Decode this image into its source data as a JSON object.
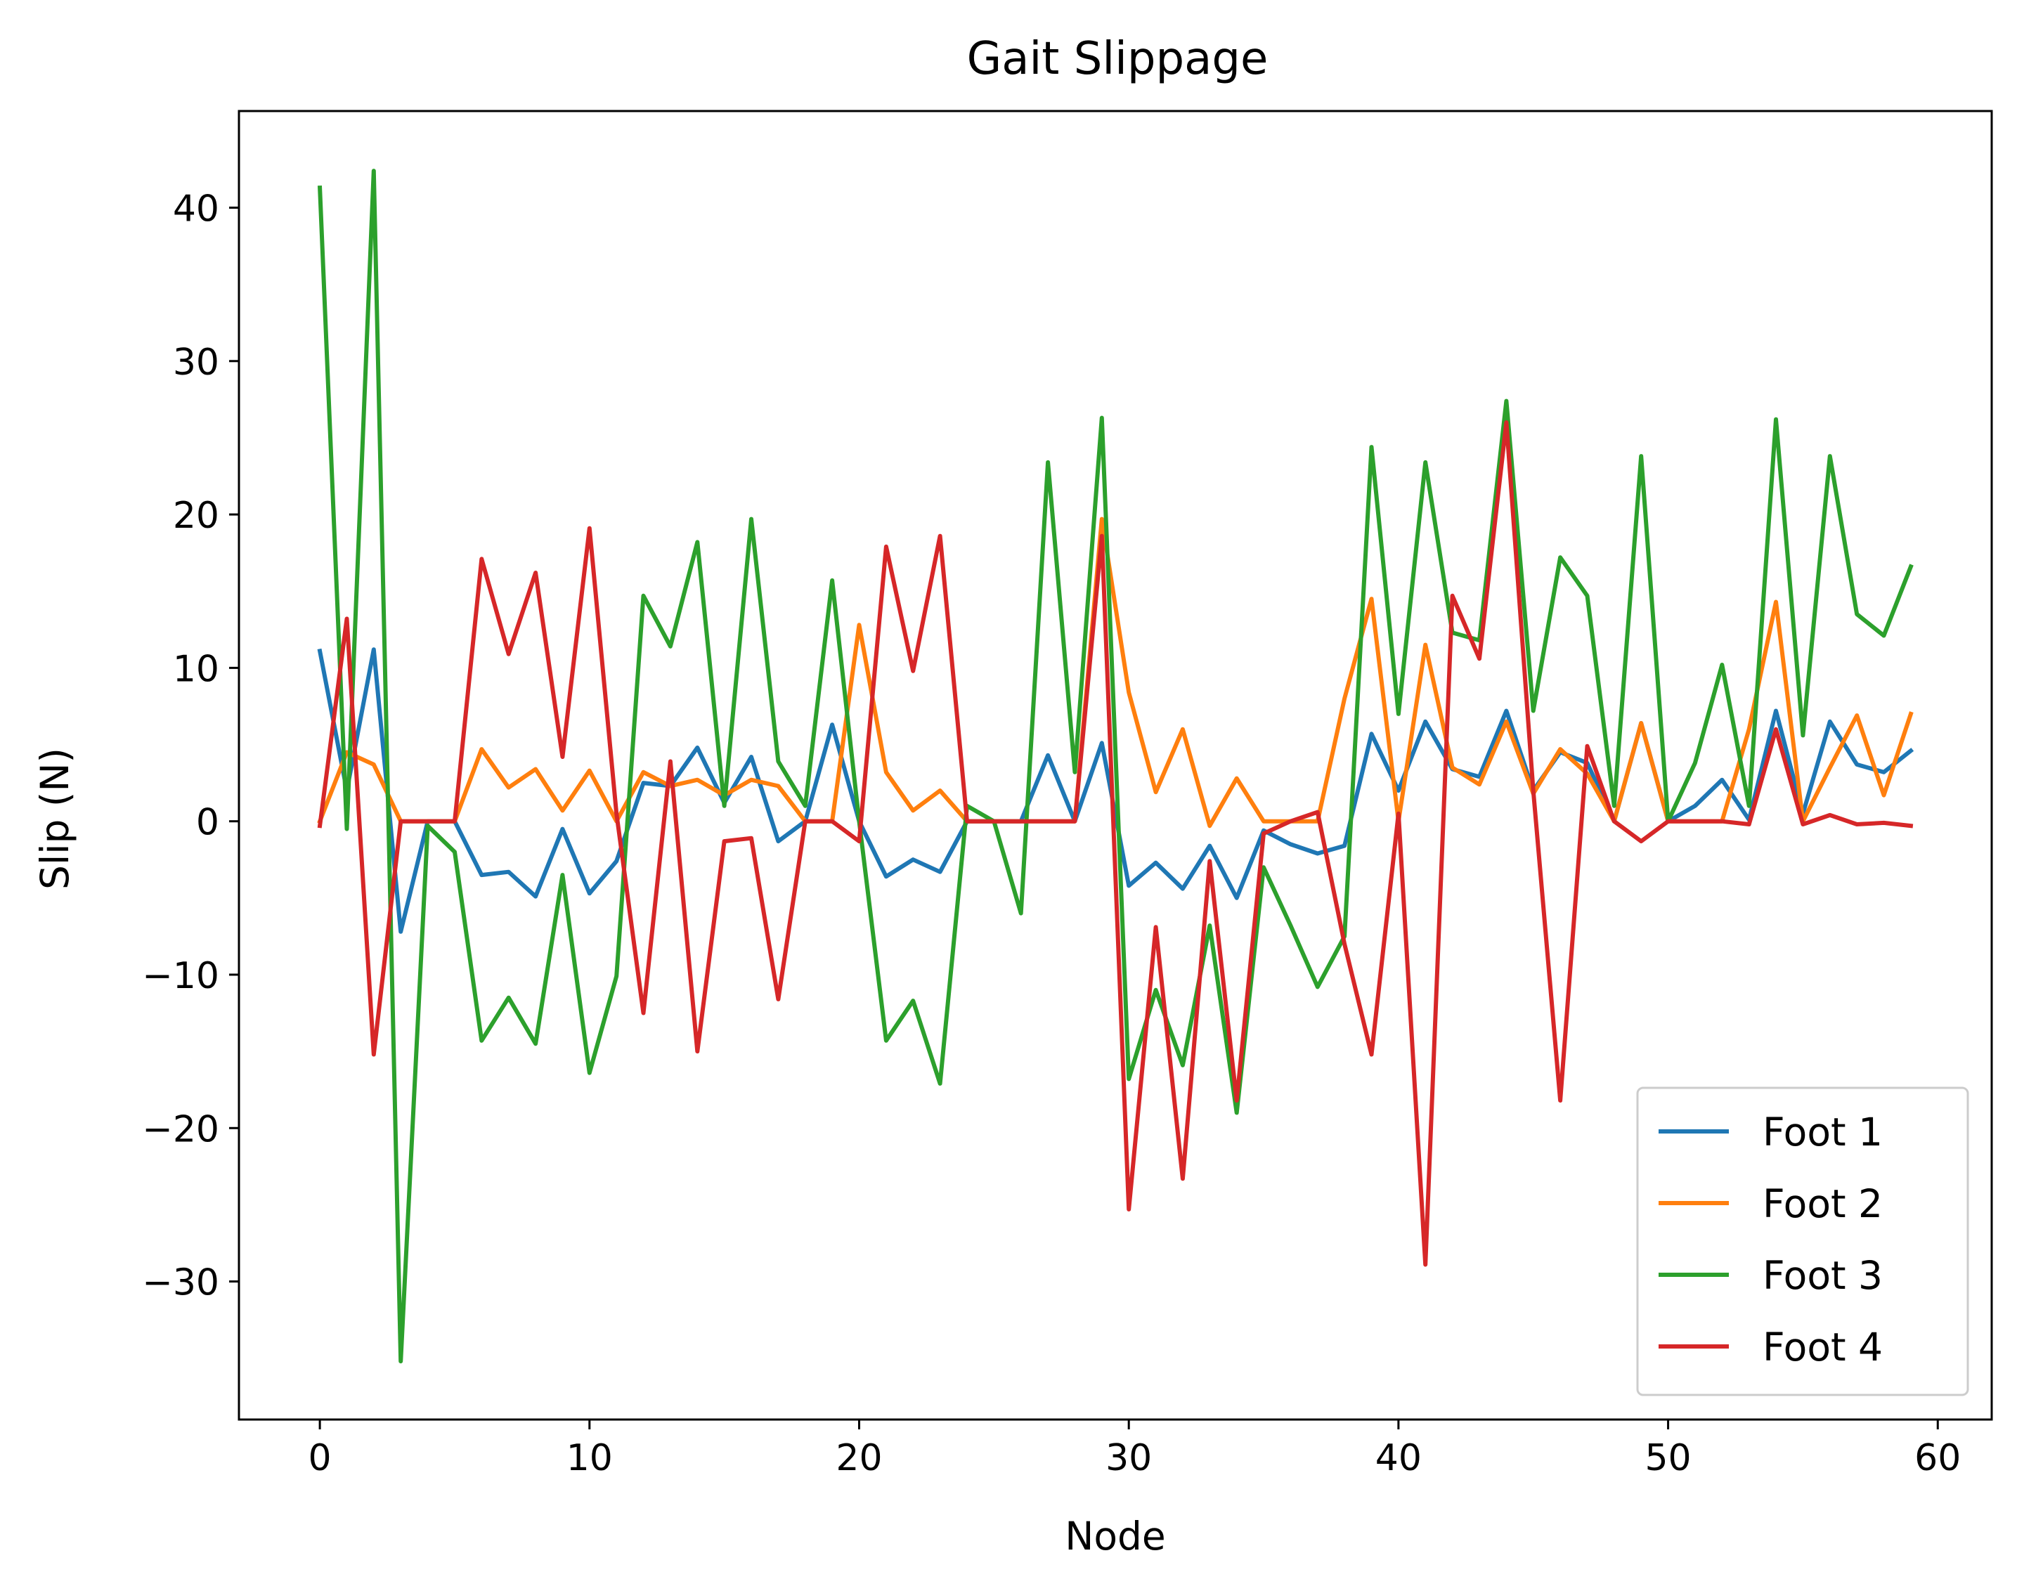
{
  "chart_data": {
    "type": "line",
    "title": "Gait Slippage",
    "xlabel": "Node",
    "ylabel": "Slip (N)",
    "xlim": [
      -3,
      62
    ],
    "ylim": [
      -39,
      46.3
    ],
    "x_ticks": [
      0,
      10,
      20,
      30,
      40,
      50,
      60
    ],
    "x_tick_labels": [
      "0",
      "10",
      "20",
      "30",
      "40",
      "50",
      "60"
    ],
    "y_ticks": [
      -30,
      -20,
      -10,
      0,
      10,
      20,
      30,
      40
    ],
    "y_tick_labels": [
      "−30",
      "−20",
      "−10",
      "0",
      "10",
      "20",
      "30",
      "40"
    ],
    "grid": false,
    "legend_position": "lower right",
    "x": [
      0,
      1,
      2,
      3,
      4,
      5,
      6,
      7,
      8,
      9,
      10,
      11,
      12,
      13,
      14,
      15,
      16,
      17,
      18,
      19,
      20,
      21,
      22,
      23,
      24,
      25,
      26,
      27,
      28,
      29,
      30,
      31,
      32,
      33,
      34,
      35,
      36,
      37,
      38,
      39,
      40,
      41,
      42,
      43,
      44,
      45,
      46,
      47,
      48,
      49,
      50,
      51,
      52,
      53,
      54,
      55,
      56,
      57,
      58,
      59
    ],
    "series": [
      {
        "name": "Foot 1",
        "color": "#1f77b4",
        "values": [
          11.1,
          2.0,
          11.2,
          -7.2,
          0.0,
          0.0,
          -3.5,
          -3.3,
          -4.9,
          -0.5,
          -4.7,
          -2.6,
          2.5,
          2.3,
          4.8,
          1.2,
          4.2,
          -1.3,
          0.0,
          6.3,
          0.0,
          -3.6,
          -2.5,
          -3.3,
          0.0,
          0.0,
          0.0,
          4.3,
          0.0,
          5.1,
          -4.2,
          -2.7,
          -4.4,
          -1.6,
          -5.0,
          -0.6,
          -1.5,
          -2.1,
          -1.6,
          5.7,
          2.0,
          6.5,
          3.4,
          2.9,
          7.2,
          2.0,
          4.5,
          3.8,
          0.0,
          6.4,
          0.0,
          1.0,
          2.7,
          0.1,
          7.2,
          0.5,
          6.5,
          3.7,
          3.2,
          4.6
        ]
      },
      {
        "name": "Foot 2",
        "color": "#ff7f0e",
        "values": [
          0.0,
          4.5,
          3.7,
          0.0,
          0.0,
          0.0,
          4.7,
          2.2,
          3.4,
          0.7,
          3.3,
          0.0,
          3.2,
          2.3,
          2.7,
          1.7,
          2.7,
          2.3,
          0.0,
          0.0,
          12.8,
          3.2,
          0.7,
          2.0,
          0.0,
          0.0,
          0.0,
          0.0,
          0.0,
          19.7,
          8.4,
          1.9,
          6.0,
          -0.3,
          2.8,
          0.0,
          0.0,
          0.0,
          8.0,
          14.5,
          0.0,
          11.5,
          3.5,
          2.4,
          6.5,
          1.8,
          4.7,
          3.1,
          0.0,
          6.4,
          0.0,
          0.0,
          0.0,
          6.0,
          14.3,
          0.0,
          3.5,
          6.9,
          1.7,
          7.0
        ]
      },
      {
        "name": "Foot 3",
        "color": "#2ca02c",
        "values": [
          41.3,
          -0.5,
          42.4,
          -35.2,
          -0.3,
          -2.0,
          -14.3,
          -11.5,
          -14.5,
          -3.5,
          -16.4,
          -10.1,
          14.7,
          11.4,
          18.2,
          1.0,
          19.7,
          3.9,
          1.0,
          15.7,
          0.0,
          -14.3,
          -11.7,
          -17.1,
          1.0,
          0.0,
          -6.0,
          23.4,
          3.2,
          26.3,
          -16.8,
          -11.0,
          -15.9,
          -6.8,
          -19.0,
          -3.0,
          -6.8,
          -10.8,
          -7.5,
          24.4,
          7.0,
          23.4,
          12.3,
          11.8,
          27.4,
          7.2,
          17.2,
          14.7,
          1.0,
          23.8,
          0.0,
          3.8,
          10.2,
          1.0,
          26.2,
          5.6,
          23.8,
          13.5,
          12.1,
          16.6
        ]
      },
      {
        "name": "Foot 4",
        "color": "#d62728",
        "values": [
          -0.3,
          13.2,
          -15.2,
          0.0,
          0.0,
          0.0,
          17.1,
          10.9,
          16.2,
          4.2,
          19.1,
          0.5,
          -12.5,
          3.9,
          -15.0,
          -1.3,
          -1.1,
          -11.6,
          0.0,
          0.0,
          -1.3,
          17.9,
          9.8,
          18.6,
          0.0,
          0.0,
          0.0,
          0.0,
          0.0,
          18.6,
          -25.3,
          -6.9,
          -23.3,
          -2.6,
          -18.2,
          -0.8,
          0.0,
          0.6,
          -8.0,
          -15.2,
          0.5,
          -28.9,
          14.7,
          10.6,
          26.0,
          2.0,
          -18.2,
          4.9,
          0.0,
          -1.3,
          0.0,
          0.0,
          0.0,
          -0.2,
          6.0,
          -0.2,
          0.4,
          -0.2,
          -0.1,
          -0.3
        ]
      }
    ]
  }
}
